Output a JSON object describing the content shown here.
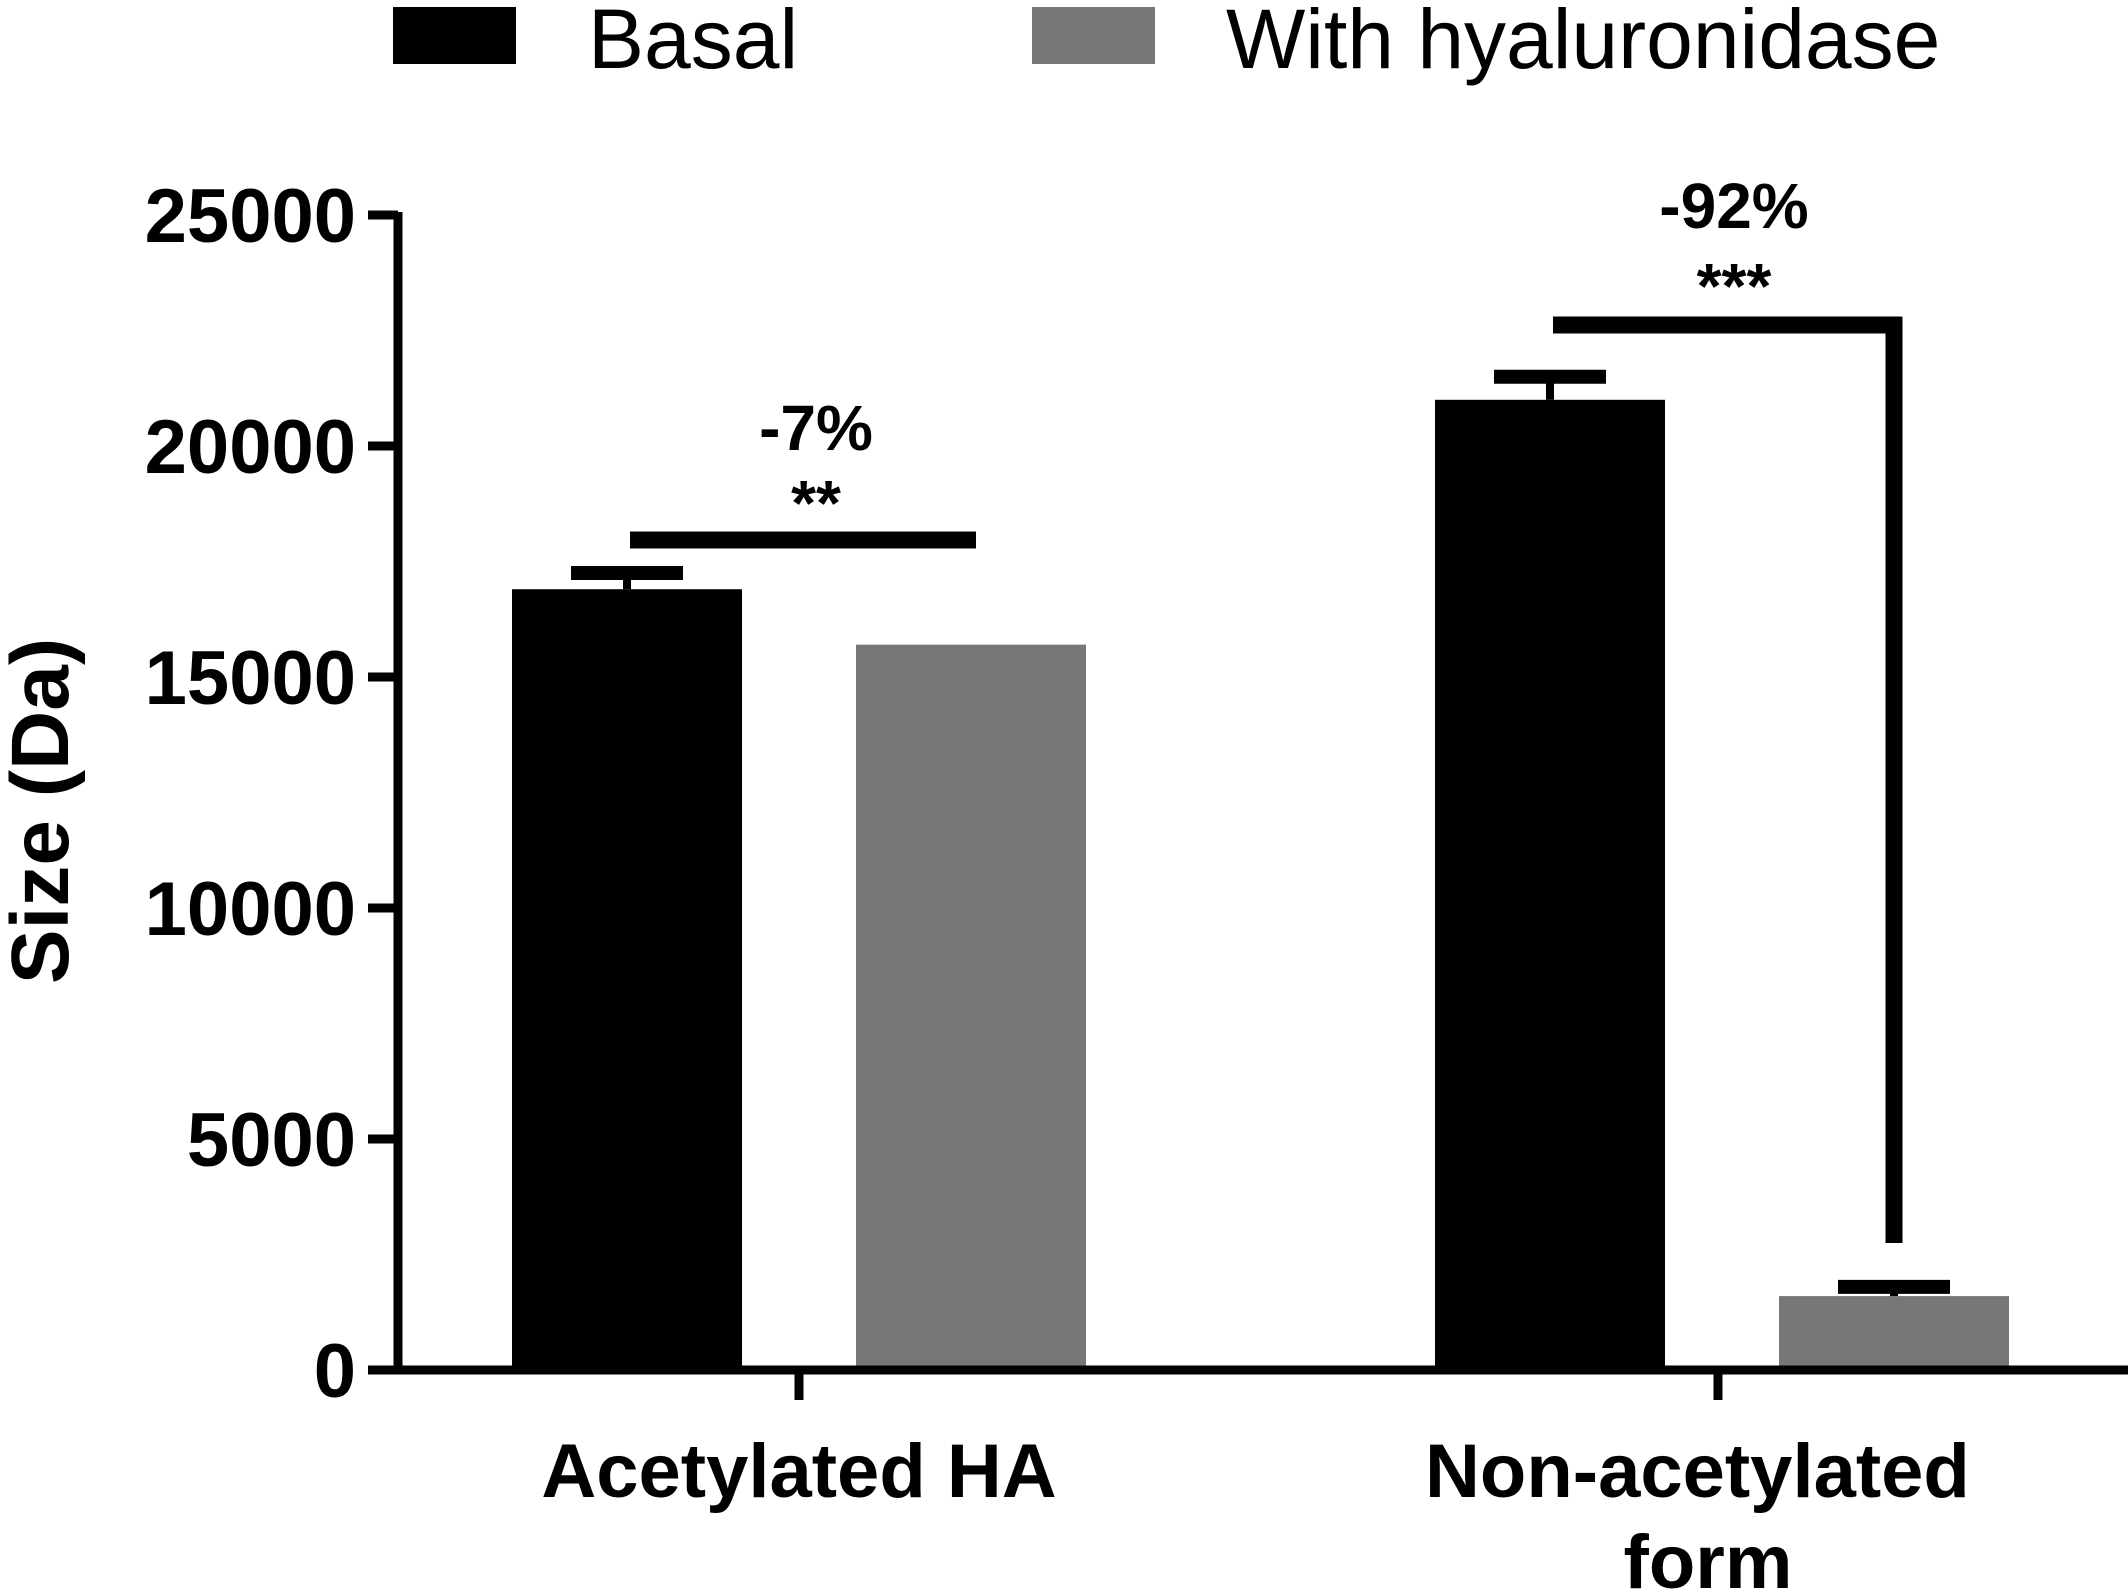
{
  "chart_data": {
    "type": "bar",
    "title": "",
    "xlabel": "",
    "ylabel": "Size (Da)",
    "ylim": [
      0,
      25000
    ],
    "yticks": [
      "0",
      "5000",
      "10000",
      "15000",
      "20000",
      "25000"
    ],
    "grid": false,
    "legend_position": "top",
    "categories": [
      "Acetylated HA",
      "Non-acetylated form"
    ],
    "series": [
      {
        "name": "Basal",
        "color": "#000000",
        "values": [
          16900,
          21000
        ],
        "errors": [
          350,
          500
        ]
      },
      {
        "name": "With hyaluronidase",
        "color": "#777777",
        "values": [
          15700,
          1600
        ],
        "errors": [
          0,
          200
        ]
      }
    ],
    "annotations": [
      {
        "category": "Acetylated HA",
        "percent": "-7%",
        "significance": "**"
      },
      {
        "category": "Non-acetylated form",
        "percent": "-92%",
        "significance": "***"
      }
    ]
  }
}
